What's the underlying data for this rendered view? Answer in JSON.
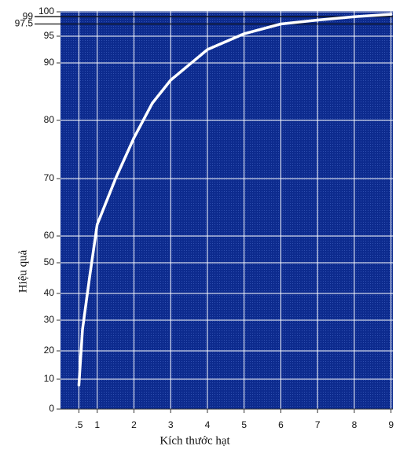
{
  "chart_data": {
    "type": "line",
    "x_label": "Kích thước hạt",
    "y_label": "Hiệu quả",
    "x": [
      0.5,
      0.6,
      0.8,
      1,
      1.5,
      2,
      2.5,
      3,
      4,
      5,
      6,
      7,
      8,
      9
    ],
    "series": [
      {
        "color": "#ffffff",
        "values": [
          8,
          27,
          46,
          62,
          70,
          77,
          83,
          87,
          92.5,
          95.5,
          97.5,
          98.3,
          99,
          99.5
        ]
      }
    ],
    "xlim": [
      0,
      9.05
    ],
    "xticks": [
      {
        "value": 0.5,
        "label": ".5"
      },
      1,
      2,
      3,
      4,
      5,
      6,
      7,
      8,
      9
    ],
    "ylim": [
      0,
      100
    ],
    "yticks": [
      0,
      10,
      20,
      30,
      40,
      50,
      60,
      70,
      80,
      90,
      95,
      100
    ],
    "reference_lines": [
      {
        "value": 99,
        "label": "99"
      },
      {
        "value": 97.5,
        "label": "97.5"
      }
    ],
    "plot_background": "#0d2b8e",
    "grid": true
  }
}
